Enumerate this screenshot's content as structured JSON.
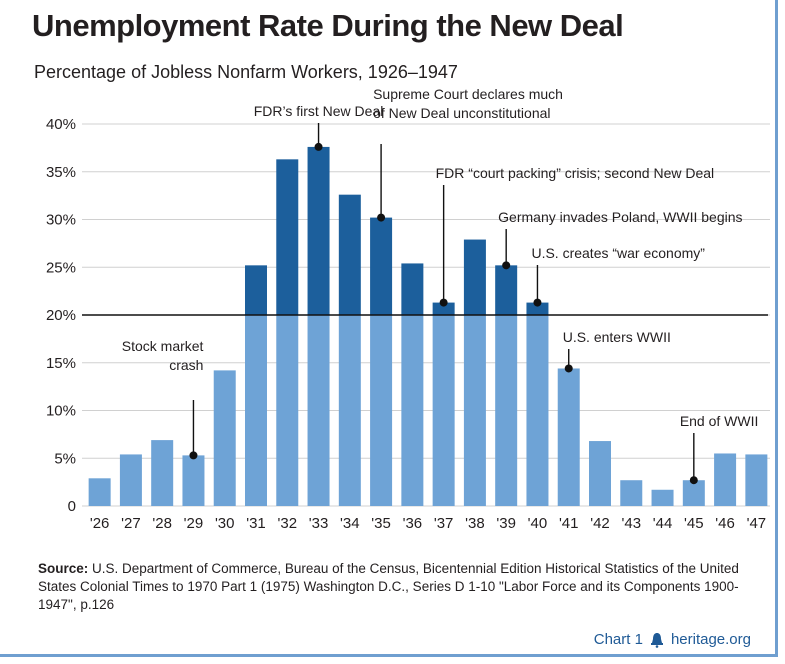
{
  "title": "Unemployment Rate During the New Deal",
  "subtitle": "Percentage of Jobless Nonfarm Workers, 1926–1947",
  "chart_data": {
    "type": "bar",
    "categories": [
      "'26",
      "'27",
      "'28",
      "'29",
      "'30",
      "'31",
      "'32",
      "'33",
      "'34",
      "'35",
      "'36",
      "'37",
      "'38",
      "'39",
      "'40",
      "'41",
      "'42",
      "'43",
      "'44",
      "'45",
      "'46",
      "'47"
    ],
    "values": [
      2.9,
      5.4,
      6.9,
      5.3,
      14.2,
      25.2,
      36.3,
      37.6,
      32.6,
      30.2,
      25.4,
      21.3,
      27.9,
      25.2,
      21.3,
      14.4,
      6.8,
      2.7,
      1.7,
      2.7,
      5.5,
      5.4
    ],
    "yticks": [
      "0",
      "5%",
      "10%",
      "15%",
      "20%",
      "25%",
      "30%",
      "35%",
      "40%"
    ],
    "ylim": [
      0,
      40
    ],
    "reference_line": 20,
    "colors": {
      "dark": "#1c5f9c",
      "light": "#6ea3d6"
    },
    "annotations": [
      {
        "lines": [
          "Stock market",
          "crash"
        ],
        "category": "'29"
      },
      {
        "lines": [
          "FDR’s first New Deal"
        ],
        "category": "'33"
      },
      {
        "lines": [
          "Supreme Court declares much",
          "of New Deal unconstitutional"
        ],
        "category": "'35"
      },
      {
        "lines": [
          "FDR “court packing” crisis; second New Deal"
        ],
        "category": "'37"
      },
      {
        "lines": [
          "Germany invades Poland, WWII begins"
        ],
        "category": "'39"
      },
      {
        "lines": [
          "U.S. creates “war economy”"
        ],
        "category": "'40"
      },
      {
        "lines": [
          "U.S. enters WWII"
        ],
        "category": "'41"
      },
      {
        "lines": [
          "End of WWII"
        ],
        "category": "'45"
      }
    ]
  },
  "source": {
    "label": "Source:",
    "text": "U.S. Department of Commerce, Bureau of the Census, Bicentennial Edition Historical Statistics of the United States Colonial Times to 1970 Part 1 (1975) Washington D.C., Series D 1-10 \"Labor Force and its Components 1900-1947\", p.126"
  },
  "footer": {
    "chart_label": "Chart 1",
    "site": "heritage.org",
    "site_icon": "liberty-bell-icon"
  }
}
